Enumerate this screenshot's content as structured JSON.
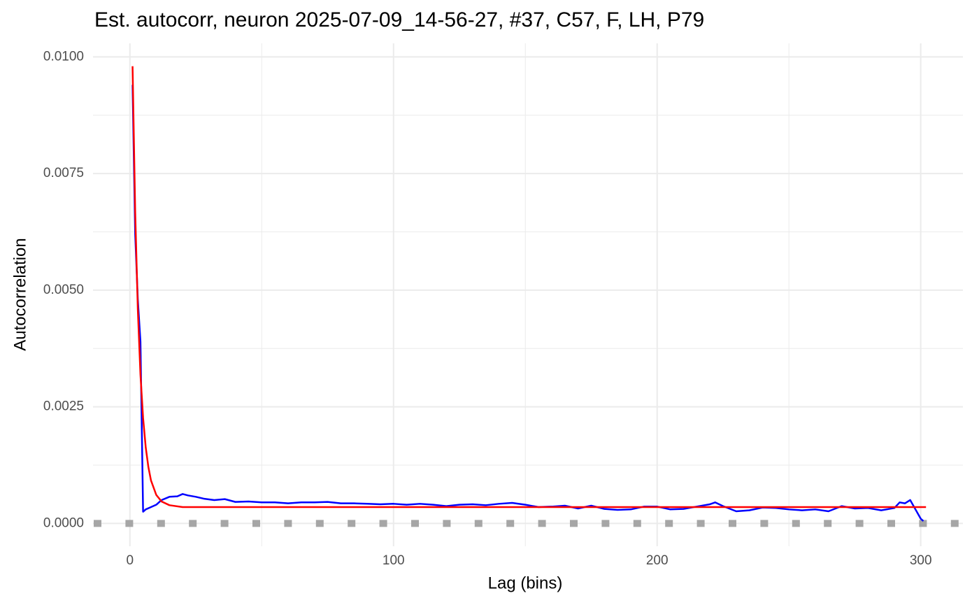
{
  "chart_data": {
    "type": "line",
    "title": "Est. autocorr, neuron 2025-07-09_14-56-27, #37, C57, F, LH, P79",
    "xlabel": "Lag (bins)",
    "ylabel": "Autocorrelation",
    "xlim": [
      -14,
      316
    ],
    "ylim": [
      -0.00049,
      0.01029
    ],
    "xticks": [
      0,
      100,
      200,
      300
    ],
    "yticks": [
      {
        "value": 0,
        "label": "0.0000"
      },
      0.0025,
      {
        "value": 0.005,
        "label": "0.0050"
      },
      0.0075,
      {
        "value": 0.01,
        "label": "0.0100"
      }
    ],
    "xminorticks": [
      50,
      150,
      250
    ],
    "yminorticks": [
      0.00125,
      0.00375,
      0.00625,
      0.00875
    ],
    "grid": true,
    "hline": {
      "value": 0,
      "color": "#a6a6a6"
    },
    "series": [
      {
        "color": "#0000ff",
        "x": [
          1,
          2,
          3,
          4,
          5,
          6,
          8,
          10,
          12,
          15,
          18,
          20,
          22,
          25,
          28,
          32,
          36,
          40,
          45,
          50,
          55,
          60,
          65,
          70,
          75,
          80,
          85,
          90,
          95,
          100,
          105,
          110,
          115,
          120,
          125,
          130,
          135,
          140,
          145,
          150,
          155,
          160,
          165,
          170,
          175,
          180,
          185,
          190,
          195,
          200,
          205,
          210,
          215,
          220,
          222,
          225,
          230,
          235,
          240,
          245,
          250,
          255,
          260,
          265,
          270,
          275,
          280,
          285,
          290,
          292,
          294,
          296,
          298,
          300,
          301
        ],
        "values": [
          0.0094,
          0.0062,
          0.0048,
          0.0039,
          0.00025,
          0.0003,
          0.00035,
          0.0004,
          0.0005,
          0.00057,
          0.00058,
          0.00063,
          0.0006,
          0.00057,
          0.00053,
          0.0005,
          0.00052,
          0.00046,
          0.00047,
          0.00045,
          0.00045,
          0.00043,
          0.00045,
          0.00045,
          0.00046,
          0.00043,
          0.00043,
          0.00042,
          0.00041,
          0.00042,
          0.0004,
          0.00042,
          0.0004,
          0.00037,
          0.0004,
          0.00041,
          0.00039,
          0.00042,
          0.00044,
          0.0004,
          0.00035,
          0.00036,
          0.00038,
          0.00032,
          0.00038,
          0.00031,
          0.00029,
          0.0003,
          0.00036,
          0.00036,
          0.0003,
          0.00031,
          0.00036,
          0.00041,
          0.00045,
          0.00037,
          0.00026,
          0.00028,
          0.00034,
          0.00033,
          0.0003,
          0.00028,
          0.0003,
          0.00026,
          0.00037,
          0.00032,
          0.00033,
          0.00028,
          0.00033,
          0.00045,
          0.00043,
          0.0005,
          0.0003,
          0.0001,
          5e-05
        ]
      },
      {
        "color": "#ff0000",
        "x": [
          1,
          2,
          3,
          4,
          5,
          6,
          7,
          8,
          10,
          12,
          15,
          20,
          302
        ],
        "values": [
          0.0098,
          0.00668,
          0.00459,
          0.00319,
          0.00226,
          0.00163,
          0.00121,
          0.00092,
          0.00061,
          0.00047,
          0.00039,
          0.00035,
          0.00035
        ]
      }
    ]
  }
}
